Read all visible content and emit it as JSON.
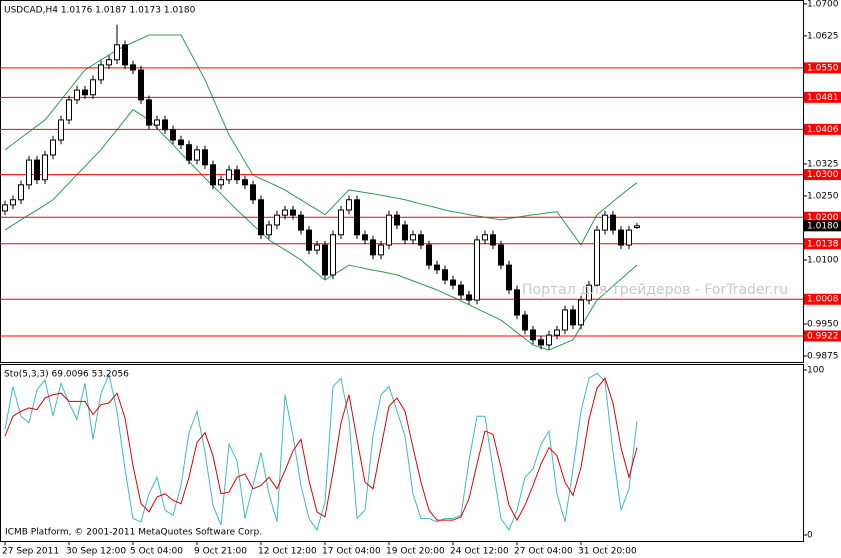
{
  "chart_data": [
    {
      "type": "candlestick",
      "title": "USDCAD,H4  1.0176 1.0187 1.0173 1.0180",
      "watermark": "Портал для трейдеров - ForTrader.ru",
      "ylim": [
        0.9861,
        1.0709
      ],
      "yticks": [
        {
          "value": 1.07,
          "label": "1.0700"
        },
        {
          "value": 1.0625,
          "label": "1.0625"
        },
        {
          "value": 1.0325,
          "label": "1.0325"
        },
        {
          "value": 1.025,
          "label": "1.0250"
        },
        {
          "value": 1.01,
          "label": "1.0100"
        },
        {
          "value": 0.995,
          "label": "0.9950"
        },
        {
          "value": 0.9875,
          "label": "0.9875"
        }
      ],
      "grid": false,
      "candle_color": "#000000",
      "open": [
        1.0215,
        1.0229,
        1.0241,
        1.0276,
        1.0334,
        1.0288,
        1.0346,
        1.0381,
        1.0428,
        1.0475,
        1.0498,
        1.0487,
        1.0522,
        1.0557,
        1.0569,
        1.0604,
        1.0557,
        1.0545,
        1.0475,
        1.0416,
        1.0428,
        1.0405,
        1.0381,
        1.037,
        1.0334,
        1.0358,
        1.0323,
        1.0276,
        1.0288,
        1.0311,
        1.0288,
        1.0276,
        1.0241,
        1.0159,
        1.0182,
        1.0205,
        1.0217,
        1.0205,
        1.017,
        1.0123,
        1.0135,
        1.0065,
        1.0159,
        1.0217,
        1.0241,
        1.0159,
        1.0147,
        1.0112,
        1.0135,
        1.0205,
        1.0182,
        1.0147,
        1.0159,
        1.0135,
        1.0088,
        1.0077,
        1.0053,
        1.0041,
        1.0018,
        1.0006,
        1.0147,
        1.0159,
        1.0135,
        1.0088,
        1.003,
        0.9971,
        0.9936,
        0.9913,
        0.9901,
        0.9924,
        0.9936,
        0.9983,
        0.9948,
        1.0006,
        1.0041,
        1.017,
        1.0205,
        1.017,
        1.0135,
        1.0176
      ],
      "high": [
        1.0239,
        1.0251,
        1.0286,
        1.0344,
        1.0344,
        1.0356,
        1.0391,
        1.0438,
        1.0485,
        1.0508,
        1.0508,
        1.0532,
        1.0567,
        1.0579,
        1.0651,
        1.0614,
        1.0567,
        1.0555,
        1.0485,
        1.0438,
        1.0438,
        1.0415,
        1.0391,
        1.038,
        1.0368,
        1.0368,
        1.0333,
        1.0298,
        1.0321,
        1.0321,
        1.0298,
        1.0286,
        1.0251,
        1.0192,
        1.0215,
        1.0227,
        1.0227,
        1.0215,
        1.018,
        1.0145,
        1.0145,
        1.0169,
        1.0227,
        1.0251,
        1.0251,
        1.0169,
        1.0157,
        1.0145,
        1.0215,
        1.0215,
        1.0192,
        1.0169,
        1.0169,
        1.0145,
        1.0098,
        1.0087,
        1.0063,
        1.0051,
        1.0028,
        1.0157,
        1.0169,
        1.0169,
        1.0145,
        1.0098,
        1.004,
        0.9981,
        0.9946,
        0.9923,
        0.9934,
        0.9946,
        0.9993,
        0.9993,
        1.0016,
        1.0051,
        1.018,
        1.0215,
        1.0215,
        1.018,
        1.018,
        1.0187
      ],
      "low": [
        1.0205,
        1.0219,
        1.0231,
        1.0266,
        1.0278,
        1.0278,
        1.0336,
        1.0371,
        1.0418,
        1.0465,
        1.0477,
        1.0477,
        1.0512,
        1.0547,
        1.0559,
        1.0547,
        1.0535,
        1.0465,
        1.0406,
        1.0406,
        1.0395,
        1.0371,
        1.036,
        1.0324,
        1.0324,
        1.0313,
        1.0266,
        1.0266,
        1.0278,
        1.0278,
        1.0266,
        1.0231,
        1.0149,
        1.0149,
        1.0172,
        1.0195,
        1.0195,
        1.016,
        1.0113,
        1.0113,
        1.0055,
        1.0055,
        1.0149,
        1.0207,
        1.0149,
        1.0137,
        1.0102,
        1.0102,
        1.0125,
        1.0172,
        1.0137,
        1.0137,
        1.0125,
        1.0078,
        1.0067,
        1.0043,
        1.0031,
        1.0008,
        0.9996,
        0.9996,
        1.0137,
        1.0125,
        1.0078,
        1.002,
        0.9961,
        0.9926,
        0.9903,
        0.9891,
        0.9891,
        0.9914,
        0.9926,
        0.9938,
        0.9938,
        0.9996,
        1.0031,
        1.016,
        1.016,
        1.0125,
        1.0125,
        1.0173
      ],
      "close": [
        1.0229,
        1.0241,
        1.0276,
        1.0334,
        1.0288,
        1.0346,
        1.0381,
        1.0428,
        1.0475,
        1.0498,
        1.0487,
        1.0522,
        1.0557,
        1.0569,
        1.0604,
        1.0557,
        1.0545,
        1.0475,
        1.0416,
        1.0428,
        1.0405,
        1.0381,
        1.037,
        1.0334,
        1.0358,
        1.0323,
        1.0276,
        1.0288,
        1.0311,
        1.0288,
        1.0276,
        1.0241,
        1.0159,
        1.0182,
        1.0205,
        1.0217,
        1.0205,
        1.017,
        1.0123,
        1.0135,
        1.0065,
        1.0159,
        1.0217,
        1.0241,
        1.0159,
        1.0147,
        1.0112,
        1.0135,
        1.0205,
        1.0182,
        1.0147,
        1.0159,
        1.0135,
        1.0088,
        1.0077,
        1.0053,
        1.0041,
        1.0018,
        1.0006,
        1.0147,
        1.0159,
        1.0135,
        1.0088,
        1.003,
        0.9971,
        0.9936,
        0.9913,
        0.9901,
        0.9924,
        0.9936,
        0.9983,
        0.9948,
        1.0006,
        1.0041,
        1.017,
        1.0205,
        1.017,
        1.0135,
        1.017,
        1.018
      ],
      "bands": {
        "color": "#2e9a50",
        "upper": [
          1.0358,
          1.0372,
          1.0386,
          1.04,
          1.0414,
          1.0428,
          1.0451,
          1.0475,
          1.0498,
          1.0522,
          1.0545,
          1.0557,
          1.0569,
          1.058,
          1.0592,
          1.0601,
          1.061,
          1.0618,
          1.0627,
          1.0627,
          1.0627,
          1.0627,
          1.0627,
          1.0592,
          1.0557,
          1.0522,
          1.0479,
          1.0436,
          1.0393,
          1.0362,
          1.033,
          1.0299,
          1.029,
          1.0282,
          1.0273,
          1.0264,
          1.0252,
          1.0241,
          1.0229,
          1.0218,
          1.0206,
          1.0225,
          1.0245,
          1.0264,
          1.0261,
          1.0258,
          1.0255,
          1.0252,
          1.0248,
          1.0245,
          1.0241,
          1.0236,
          1.0231,
          1.0227,
          1.0222,
          1.0217,
          1.0213,
          1.021,
          1.0206,
          1.0203,
          1.02,
          1.0197,
          1.0194,
          1.0197,
          1.02,
          1.0203,
          1.0206,
          1.0208,
          1.0211,
          1.0213,
          1.0187,
          1.0161,
          1.0135,
          1.0171,
          1.0206,
          1.0221,
          1.0237,
          1.0252,
          1.0267,
          1.0281
        ],
        "lower": [
          1.017,
          1.0182,
          1.0194,
          1.0206,
          1.0217,
          1.0229,
          1.0241,
          1.0261,
          1.028,
          1.03,
          1.0319,
          1.0339,
          1.0358,
          1.0382,
          1.0405,
          1.0429,
          1.0452,
          1.044,
          1.0428,
          1.0409,
          1.0389,
          1.037,
          1.035,
          1.0331,
          1.0311,
          1.0292,
          1.0273,
          1.0255,
          1.0236,
          1.0217,
          1.02,
          1.0182,
          1.0165,
          1.0147,
          1.0135,
          1.0124,
          1.0112,
          1.01,
          1.0084,
          1.0069,
          1.0053,
          1.0065,
          1.0076,
          1.0088,
          1.0084,
          1.008,
          1.0076,
          1.0073,
          1.0069,
          1.0065,
          1.0058,
          1.0051,
          1.0044,
          1.0037,
          1.003,
          1.0021,
          1.0013,
          1.0004,
          0.9995,
          0.9986,
          0.9977,
          0.9968,
          0.9959,
          0.9945,
          0.993,
          0.9916,
          0.9901,
          0.9895,
          0.9889,
          0.9897,
          0.9905,
          0.9913,
          0.9944,
          0.9975,
          1.0006,
          1.0022,
          1.0039,
          1.0055,
          1.0072,
          1.0088
        ]
      },
      "levels": {
        "color": "#ff0000",
        "items": [
          {
            "value": 1.055,
            "label": "1.0550"
          },
          {
            "value": 1.0481,
            "label": "1.0481"
          },
          {
            "value": 1.0406,
            "label": "1.0406"
          },
          {
            "value": 1.03,
            "label": "1.0300"
          },
          {
            "value": 1.02,
            "label": "1.0200"
          },
          {
            "value": 1.0138,
            "label": "1.0138"
          },
          {
            "value": 1.0008,
            "label": "1.0008"
          },
          {
            "value": 0.9922,
            "label": "0.9922"
          }
        ]
      },
      "price": {
        "value": 1.018,
        "label": "1.0180"
      }
    },
    {
      "type": "line",
      "title": "Sto(5,3,3) 69.0096 53.2056",
      "annotation": "ICMB Platform, © 2001-2011 MetaQuotes Software Corp.",
      "ylim": [
        0,
        100
      ],
      "yticks": [
        0,
        100
      ],
      "categories": [
        "27 Sep 2011",
        null,
        null,
        null,
        null,
        null,
        null,
        null,
        "30 Sep 12:00",
        null,
        null,
        null,
        null,
        null,
        null,
        null,
        "5 Oct 04:00",
        null,
        null,
        null,
        null,
        null,
        null,
        null,
        "9 Oct 21:00",
        null,
        null,
        null,
        null,
        null,
        null,
        null,
        "12 Oct 12:00",
        null,
        null,
        null,
        null,
        null,
        null,
        null,
        "17 Oct 04:00",
        null,
        null,
        null,
        null,
        null,
        null,
        null,
        "19 Oct 20:00",
        null,
        null,
        null,
        null,
        null,
        null,
        null,
        "24 Oct 12:00",
        null,
        null,
        null,
        null,
        null,
        null,
        null,
        "27 Oct 04:00",
        null,
        null,
        null,
        null,
        null,
        null,
        null,
        "31 Oct 20:00",
        null,
        null,
        null,
        null,
        null,
        null,
        null
      ],
      "series": [
        {
          "color": "#3cbcc0",
          "values": [
            64,
            90,
            72,
            68,
            88,
            94,
            72,
            92,
            80,
            70,
            92,
            58,
            86,
            97,
            75,
            40,
            10,
            8,
            25,
            35,
            15,
            12,
            30,
            62,
            75,
            50,
            18,
            6,
            55,
            45,
            10,
            30,
            50,
            25,
            8,
            85,
            60,
            30,
            10,
            3,
            20,
            90,
            95,
            70,
            10,
            15,
            60,
            85,
            90,
            75,
            60,
            25,
            10,
            10,
            8,
            10,
            10,
            12,
            45,
            72,
            72,
            40,
            10,
            3,
            15,
            35,
            40,
            55,
            63,
            25,
            8,
            40,
            75,
            95,
            98,
            93,
            50,
            15,
            28,
            69
          ]
        },
        {
          "color": "#e00000",
          "values": [
            60,
            72,
            75,
            77,
            76,
            83,
            85,
            86,
            81,
            81,
            81,
            73,
            79,
            80,
            86,
            71,
            42,
            19,
            14,
            23,
            25,
            21,
            19,
            35,
            56,
            62,
            48,
            25,
            26,
            35,
            37,
            28,
            30,
            35,
            28,
            39,
            51,
            58,
            33,
            14,
            11,
            38,
            68,
            85,
            58,
            32,
            28,
            53,
            78,
            83,
            75,
            53,
            32,
            15,
            9,
            9,
            9,
            11,
            22,
            43,
            63,
            61,
            41,
            18,
            9,
            18,
            30,
            43,
            53,
            48,
            32,
            24,
            41,
            70,
            89,
            95,
            80,
            53,
            35,
            53
          ]
        }
      ]
    }
  ]
}
